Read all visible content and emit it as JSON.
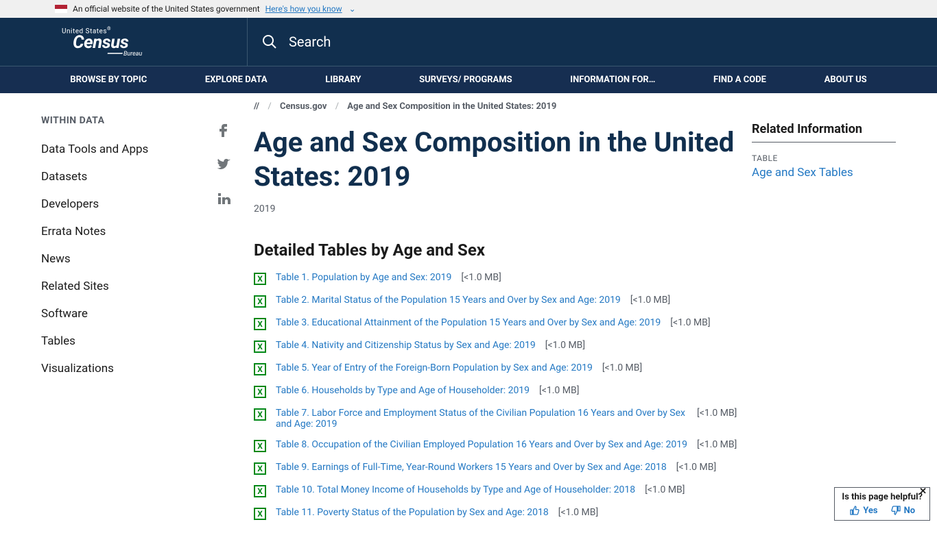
{
  "banner": {
    "text": "An official website of the United States government",
    "link": "Here's how you know"
  },
  "search": {
    "placeholder": "Search"
  },
  "nav": [
    "BROWSE BY TOPIC",
    "EXPLORE DATA",
    "LIBRARY",
    "SURVEYS/ PROGRAMS",
    "INFORMATION FOR…",
    "FIND A CODE",
    "ABOUT US"
  ],
  "sidebar": {
    "title": "WITHIN DATA",
    "items": [
      "Data Tools and Apps",
      "Datasets",
      "Developers",
      "Errata Notes",
      "News",
      "Related Sites",
      "Software",
      "Tables",
      "Visualizations"
    ]
  },
  "breadcrumb": {
    "root": "//",
    "home": "Census.gov",
    "current": "Age and Sex Composition in the United States: 2019"
  },
  "page": {
    "title": "Age and Sex Composition in the United States: 2019",
    "year": "2019",
    "section": "Detailed Tables by Age and Sex"
  },
  "tables": [
    {
      "label": "Table 1. Population by Age and Sex: 2019",
      "size": "[<1.0 MB]"
    },
    {
      "label": "Table 2. Marital Status of the Population 15 Years and Over by Sex and Age: 2019",
      "size": "[<1.0 MB]"
    },
    {
      "label": "Table 3. Educational Attainment of the Population 15 Years and Over by Sex and Age: 2019",
      "size": "[<1.0 MB]"
    },
    {
      "label": "Table 4. Nativity and Citizenship Status by Sex and Age: 2019",
      "size": "[<1.0 MB]"
    },
    {
      "label": "Table 5. Year of Entry of the Foreign-Born Population by Sex and Age: 2019",
      "size": "[<1.0 MB]"
    },
    {
      "label": "Table 6. Households by Type and Age of Householder: 2019",
      "size": "[<1.0 MB]"
    },
    {
      "label": "Table 7. Labor Force and Employment Status of the Civilian Population 16 Years and Over by Sex and Age: 2019",
      "size": "[<1.0 MB]"
    },
    {
      "label": "Table 8. Occupation of the Civilian Employed Population 16 Years and Over by Sex and Age: 2019",
      "size": "[<1.0 MB]"
    },
    {
      "label": "Table 9. Earnings of Full-Time, Year-Round Workers 15 Years and Over by Sex and Age: 2018",
      "size": "[<1.0 MB]"
    },
    {
      "label": "Table 10. Total Money Income of Households by Type and Age of Householder: 2018",
      "size": "[<1.0 MB]"
    },
    {
      "label": "Table 11. Poverty Status of the Population by Sex and Age: 2018",
      "size": "[<1.0 MB]"
    }
  ],
  "related": {
    "title": "Related Information",
    "type": "TABLE",
    "link": "Age and Sex Tables"
  },
  "feedback": {
    "q": "Is this page helpful?",
    "yes": "Yes",
    "no": "No"
  },
  "colors": {
    "header_bg": "#112f4e",
    "nav_bg": "#162e51",
    "link": "#2378c3",
    "xls_green": "#008817",
    "text_muted": "#565c65"
  }
}
